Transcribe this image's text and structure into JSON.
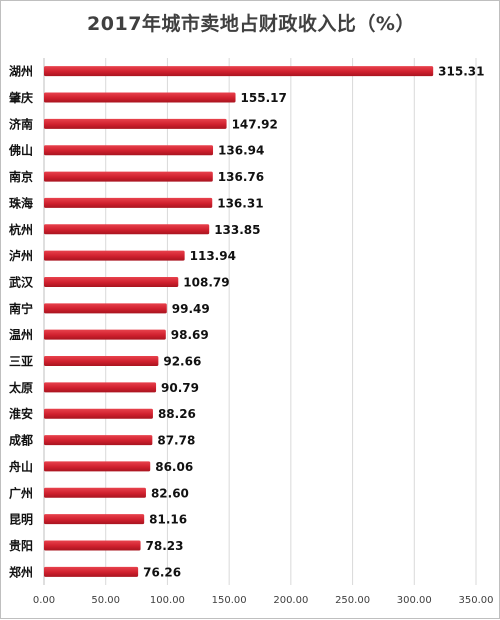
{
  "chart_data": {
    "type": "bar",
    "orientation": "horizontal",
    "title": "2017年城市卖地占财政收入比（%）",
    "xlabel": "",
    "ylabel": "",
    "xlim": [
      0,
      350
    ],
    "x_ticks": [
      "0.00",
      "50.00",
      "100.00",
      "150.00",
      "200.00",
      "250.00",
      "300.00",
      "350.00"
    ],
    "grid": true,
    "legend": "none",
    "bar_color": "#d0202e",
    "categories": [
      "湖州",
      "肇庆",
      "济南",
      "佛山",
      "南京",
      "珠海",
      "杭州",
      "泸州",
      "武汉",
      "南宁",
      "温州",
      "三亚",
      "太原",
      "淮安",
      "成都",
      "舟山",
      "广州",
      "昆明",
      "贵阳",
      "郑州"
    ],
    "values": [
      315.31,
      155.17,
      147.92,
      136.94,
      136.76,
      136.31,
      133.85,
      113.94,
      108.79,
      99.49,
      98.69,
      92.66,
      90.79,
      88.26,
      87.78,
      86.06,
      82.6,
      81.16,
      78.23,
      76.26
    ],
    "data_labels": [
      "315.31",
      "155.17",
      "147.92",
      "136.94",
      "136.76",
      "136.31",
      "133.85",
      "113.94",
      "108.79",
      "99.49",
      "98.69",
      "92.66",
      "90.79",
      "88.26",
      "87.78",
      "86.06",
      "82.60",
      "81.16",
      "78.23",
      "76.26"
    ]
  }
}
